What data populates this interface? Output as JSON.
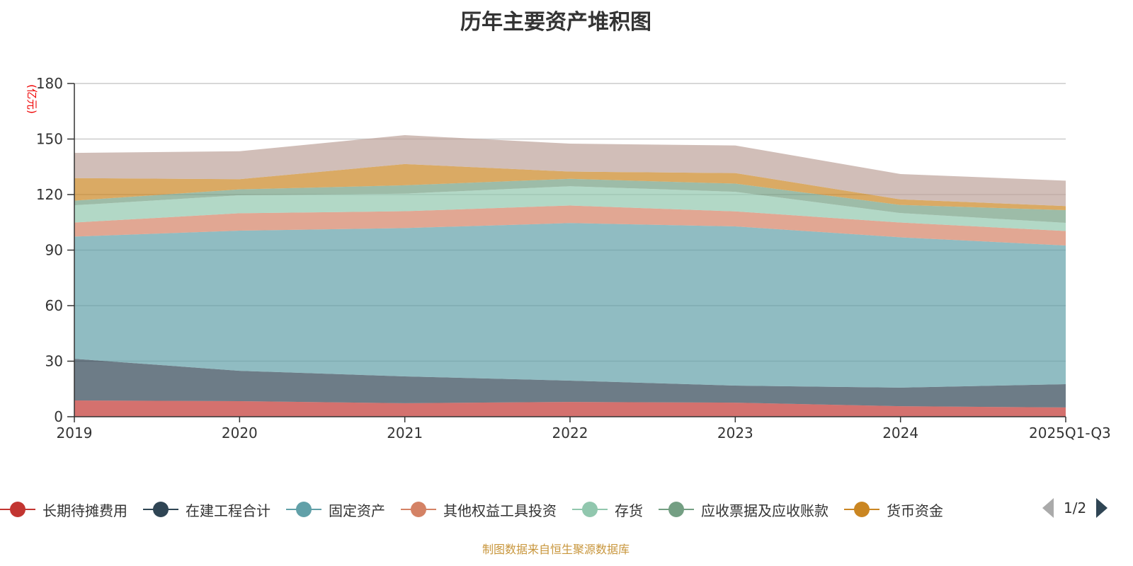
{
  "title": "历年主要资产堆积图",
  "source_note": "制图数据来自恒生聚源数据库",
  "legend_page": "1/2",
  "chart_data": {
    "type": "area",
    "stacked": true,
    "title": "历年主要资产堆积图",
    "ylabel": "(亿元)",
    "ylim": [
      0,
      180
    ],
    "yticks": [
      "0",
      "30",
      "60",
      "90",
      "120",
      "150",
      "180"
    ],
    "grid": true,
    "legend_placement": "bottom",
    "categories": [
      "2019",
      "2020",
      "2021",
      "2022",
      "2023",
      "2024",
      "2025Q1-Q3"
    ],
    "series": [
      {
        "name": "长期待摊费用",
        "color": "#c23531",
        "values": [
          8.8,
          8.4,
          7.3,
          8.0,
          7.6,
          5.7,
          5.0
        ]
      },
      {
        "name": "在建工程合计",
        "color": "#2f4554",
        "values": [
          22.5,
          16.4,
          14.5,
          11.5,
          9.2,
          10.0,
          12.6
        ]
      },
      {
        "name": "固定资产",
        "color": "#61a0a8",
        "values": [
          66.0,
          75.7,
          80.1,
          85.1,
          86.0,
          81.2,
          74.9
        ]
      },
      {
        "name": "其他权益工具投资",
        "color": "#d48265",
        "values": [
          7.6,
          9.4,
          9.1,
          9.5,
          8.1,
          8.0,
          7.8
        ]
      },
      {
        "name": "存货",
        "color": "#91c7ae",
        "values": [
          9.3,
          9.7,
          9.5,
          10.4,
          10.6,
          5.1,
          4.4
        ]
      },
      {
        "name": "应收票据及应收账款",
        "color": "#749f83",
        "values": [
          2.5,
          3.2,
          4.5,
          4.0,
          4.4,
          4.4,
          6.9
        ]
      },
      {
        "name": "货币资金",
        "color": "#ca8622",
        "values": [
          12.2,
          5.5,
          11.5,
          3.9,
          5.7,
          3.0,
          2.2
        ]
      },
      {
        "color": "#bda29a",
        "values": [
          13.6,
          15.1,
          15.6,
          15.1,
          14.9,
          13.7,
          13.7
        ]
      }
    ]
  }
}
